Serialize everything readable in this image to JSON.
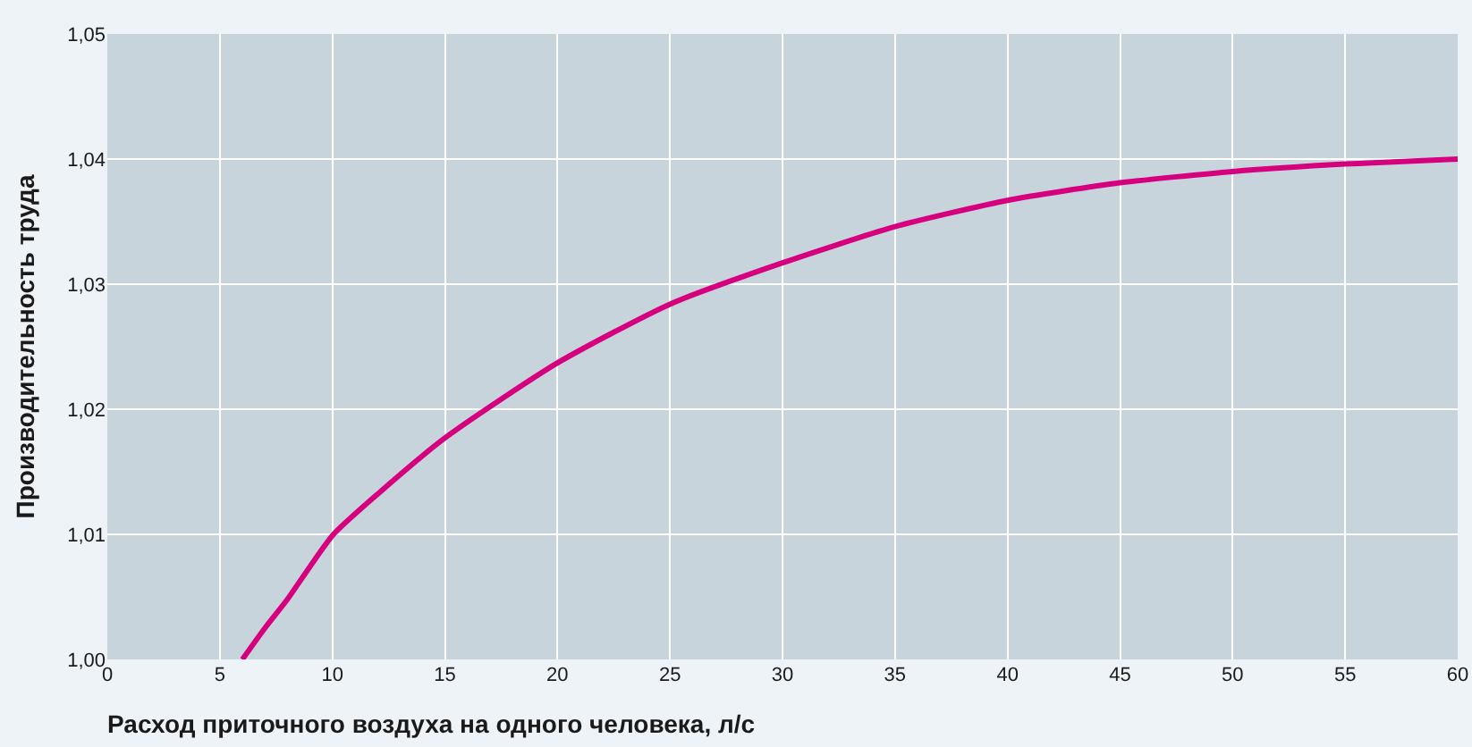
{
  "chart_data": {
    "type": "line",
    "xlabel": "Расход приточного воздуха на одного человека, л/с",
    "ylabel": "Производительность труда",
    "x": [
      6,
      7,
      8,
      10,
      12,
      15,
      20,
      25,
      30,
      35,
      40,
      45,
      50,
      55,
      60
    ],
    "series": [
      {
        "color": "#d6007e",
        "values": [
          1.0,
          1.0025,
          1.0048,
          1.0099,
          1.0132,
          1.0177,
          1.0237,
          1.0284,
          1.0317,
          1.0346,
          1.0367,
          1.0381,
          1.039,
          1.0396,
          1.04
        ]
      }
    ],
    "xlim": [
      0,
      60
    ],
    "xticks": [
      0,
      5,
      10,
      15,
      20,
      25,
      30,
      35,
      40,
      45,
      50,
      55,
      60
    ],
    "ylim": [
      1.0,
      1.05
    ],
    "yticks": [
      {
        "value": 1.0,
        "label": "1,00"
      },
      {
        "value": 1.01,
        "label": "1,01"
      },
      {
        "value": 1.02,
        "label": "1,02"
      },
      {
        "value": 1.03,
        "label": "1,03"
      },
      {
        "value": 1.04,
        "label": "1,04"
      },
      {
        "value": 1.05,
        "label": "1,05"
      }
    ],
    "grid": true,
    "legend": false,
    "marker": "none",
    "line_style": "solid"
  }
}
